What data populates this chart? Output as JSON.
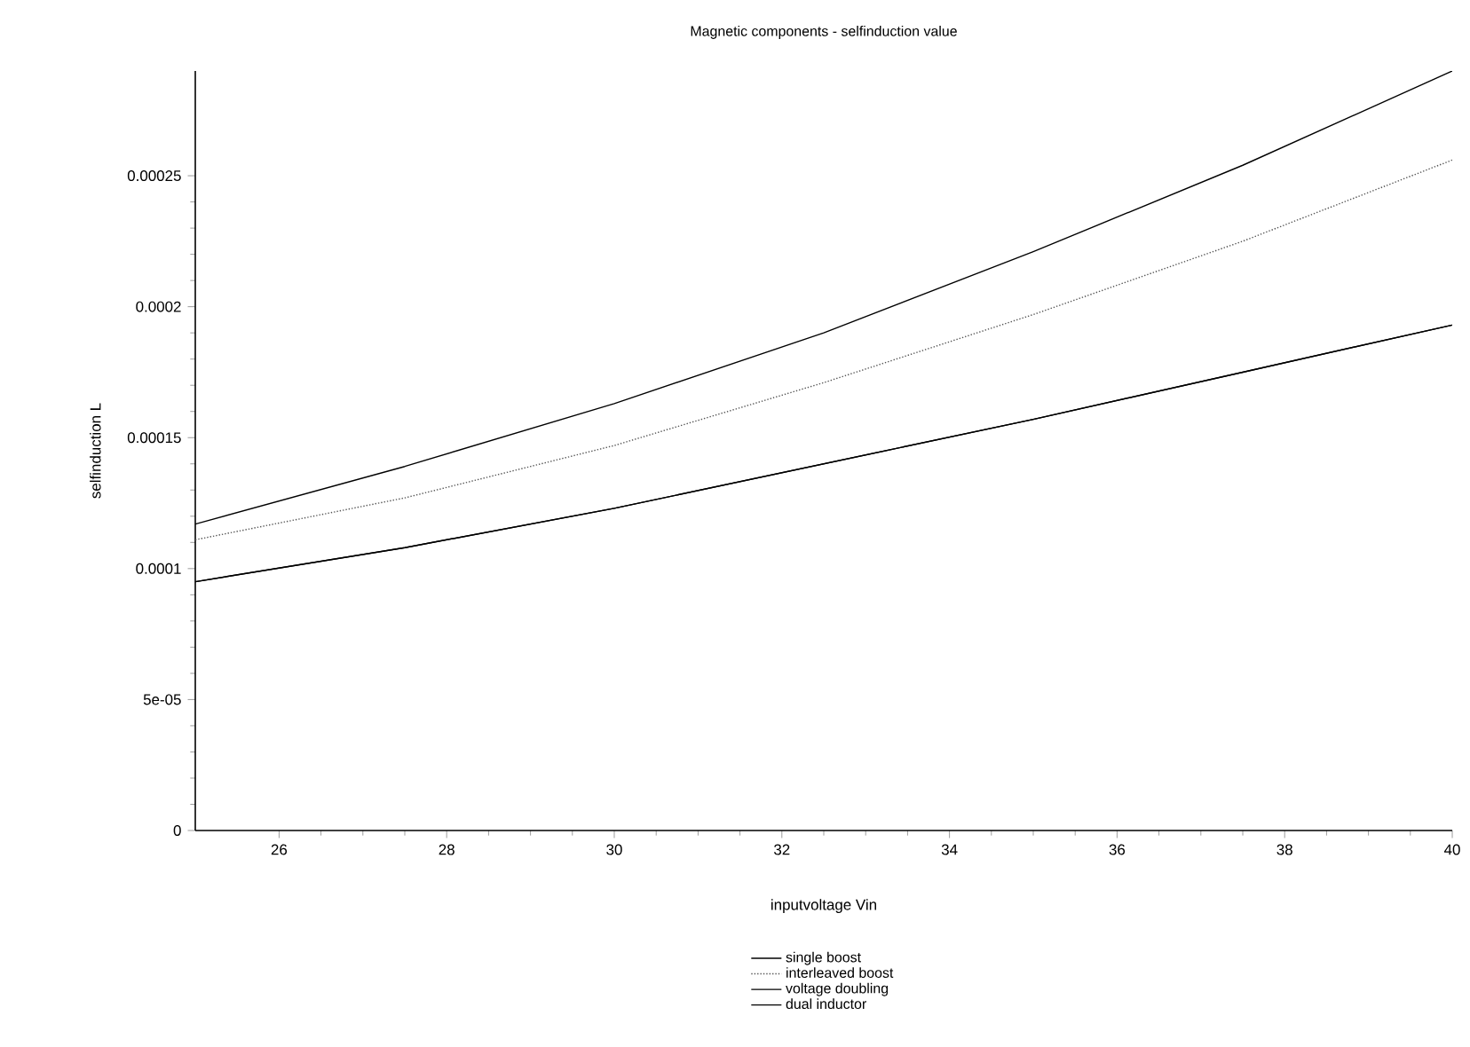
{
  "chart_data": {
    "type": "line",
    "title": "Magnetic components - selfinduction value",
    "xlabel": "inputvoltage Vin",
    "ylabel": "selfinduction L",
    "x": [
      25,
      27.5,
      30,
      32.5,
      35,
      37.5,
      40
    ],
    "series": [
      {
        "name": "single boost",
        "color": "#000000",
        "line_style": "solid",
        "values": [
          0.000117,
          0.000139,
          0.000163,
          0.00019,
          0.000221,
          0.000254,
          0.00029
        ]
      },
      {
        "name": "interleaved boost",
        "color": "#555555",
        "line_style": "dotted",
        "values": [
          0.000111,
          0.000127,
          0.000147,
          0.000171,
          0.000197,
          0.000225,
          0.000256
        ]
      },
      {
        "name": "voltage doubling",
        "color": "#000000",
        "line_style": "solid",
        "values": [
          9.5e-05,
          0.000108,
          0.000123,
          0.00014,
          0.000157,
          0.000175,
          0.000193
        ]
      },
      {
        "name": "dual inductor",
        "color": "#000000",
        "line_style": "solid",
        "values": [
          9.5e-05,
          0.000108,
          0.000123,
          0.00014,
          0.000157,
          0.000175,
          0.000193
        ]
      }
    ],
    "xlim": [
      25,
      40
    ],
    "ylim": [
      0,
      0.00029
    ],
    "xticks": [
      26,
      28,
      30,
      32,
      34,
      36,
      38,
      40
    ],
    "yticks": [
      0,
      {
        "value": 5e-05,
        "label": "5e-05"
      },
      {
        "value": 0.0001,
        "label": "0.0001"
      },
      {
        "value": 0.00015,
        "label": "0.00015"
      },
      {
        "value": 0.0002,
        "label": "0.0002"
      },
      {
        "value": 0.00025,
        "label": "0.00025"
      }
    ],
    "grid": false,
    "legend": "bottom",
    "marker": "none"
  }
}
